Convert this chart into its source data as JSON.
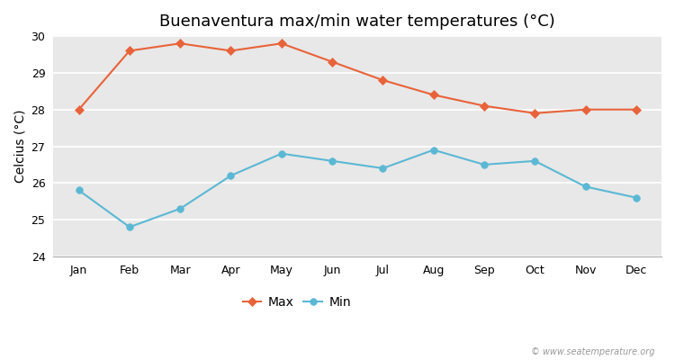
{
  "months": [
    "Jan",
    "Feb",
    "Mar",
    "Apr",
    "May",
    "Jun",
    "Jul",
    "Aug",
    "Sep",
    "Oct",
    "Nov",
    "Dec"
  ],
  "max_values": [
    28.0,
    29.6,
    29.8,
    29.6,
    29.8,
    29.3,
    28.8,
    28.4,
    28.1,
    27.9,
    28.0,
    28.0
  ],
  "min_values": [
    25.8,
    24.8,
    25.3,
    26.2,
    26.8,
    26.6,
    26.4,
    26.9,
    26.5,
    26.6,
    25.9,
    25.6
  ],
  "max_color": "#E8633A",
  "min_color": "#5BB8D4",
  "title": "Buenaventura max/min water temperatures (°C)",
  "ylabel": "Celcius (°C)",
  "ylim": [
    24,
    30
  ],
  "yticks": [
    24,
    25,
    26,
    27,
    28,
    29,
    30
  ],
  "fig_bg_color": "#ffffff",
  "plot_bg_color": "#e8e8e8",
  "watermark": "© www.seatemperature.org",
  "legend_max": "Max",
  "legend_min": "Min",
  "title_fontsize": 13,
  "label_fontsize": 10,
  "tick_fontsize": 9
}
